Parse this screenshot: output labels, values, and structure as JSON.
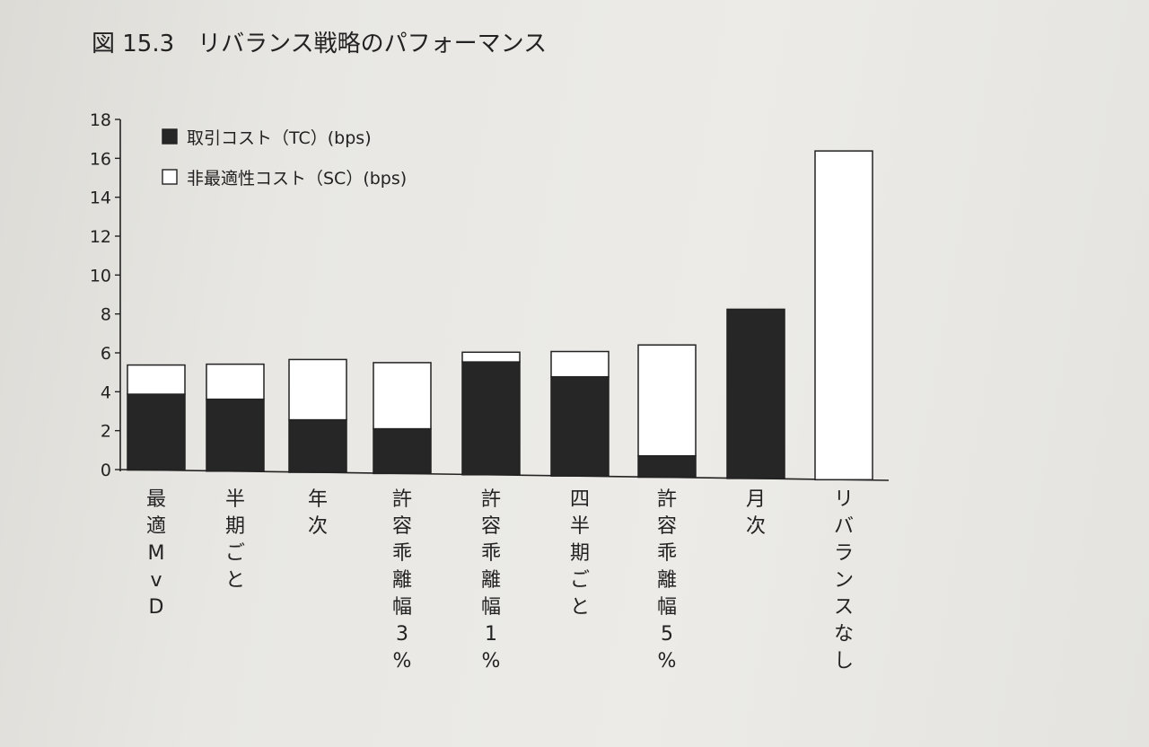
{
  "figure": {
    "label": "図 15.3",
    "title": "リバランス戦略のパフォーマンス"
  },
  "chart_data": {
    "type": "bar",
    "stacked": true,
    "title": "リバランス戦略のパフォーマンス",
    "xlabel": "",
    "ylabel": "",
    "ylim": [
      0,
      18
    ],
    "yticks": [
      0,
      2,
      4,
      6,
      8,
      10,
      12,
      14,
      16,
      18
    ],
    "grid": false,
    "legend_position": "top-left",
    "categories": [
      "最適MvD",
      "半期ごと",
      "年次",
      "許容乖離幅3%",
      "許容乖離幅1%",
      "四半期ごと",
      "許容乖離幅5%",
      "月次",
      "リバランスなし"
    ],
    "series": [
      {
        "name": "取引コスト（TC）(bps)",
        "color": "#262626",
        "values": [
          3.9,
          3.7,
          2.7,
          2.3,
          5.8,
          5.1,
          1.1,
          8.7,
          0.0
        ]
      },
      {
        "name": "非最適性コスト（SC）(bps)",
        "color": "#ffffff",
        "values": [
          1.5,
          1.8,
          3.1,
          3.4,
          0.5,
          1.3,
          5.7,
          0.0,
          16.9
        ]
      }
    ]
  }
}
